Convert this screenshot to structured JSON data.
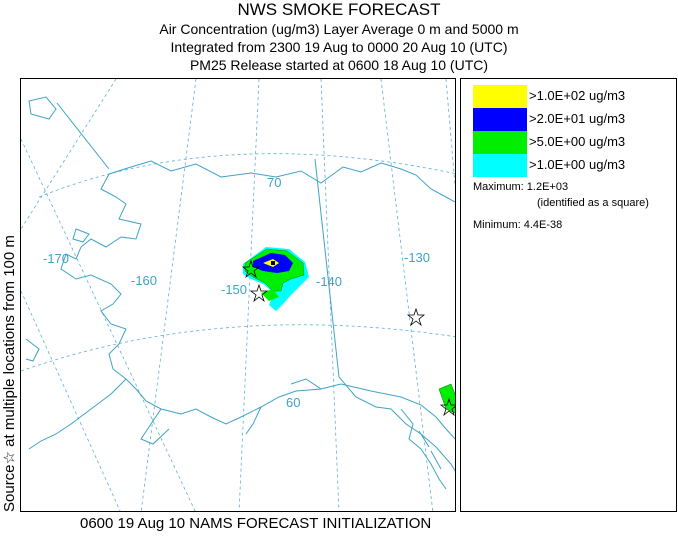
{
  "title": {
    "line1": "NWS SMOKE FORECAST",
    "line2": "Air Concentration (ug/m3) Layer Average    0 m and  5000 m",
    "line3": "Integrated from 2300 19 Aug to 0000 20 Aug 10 (UTC)",
    "line4": "PM25 Release started at 0600 18 Aug 10 (UTC)"
  },
  "vertical_label": "Source☆ at multiple locations  from   100 m",
  "footer": "0600 19 Aug 10 NAMS FORECAST INITIALIZATION",
  "legend": {
    "items": [
      {
        "label": ">1.0E+02 ug/m3",
        "color": "#ffff00"
      },
      {
        "label": ">2.0E+01 ug/m3",
        "color": "#0000ff"
      },
      {
        "label": ">5.0E+00 ug/m3",
        "color": "#00ee00"
      },
      {
        "label": ">1.0E+00 ug/m3",
        "color": "#00ffff"
      }
    ],
    "maximum": "Maximum: 1.2E+03",
    "maximum_note": "(identified as a square)",
    "minimum": "Minimum: 4.4E-38"
  },
  "map": {
    "meridian_labels": [
      "-170",
      "-160",
      "-150",
      "-140",
      "-130"
    ],
    "parallel_labels": [
      "70",
      "60"
    ],
    "graticule_color": "#3fa2c8",
    "coast_color": "#3fa2c8"
  }
}
